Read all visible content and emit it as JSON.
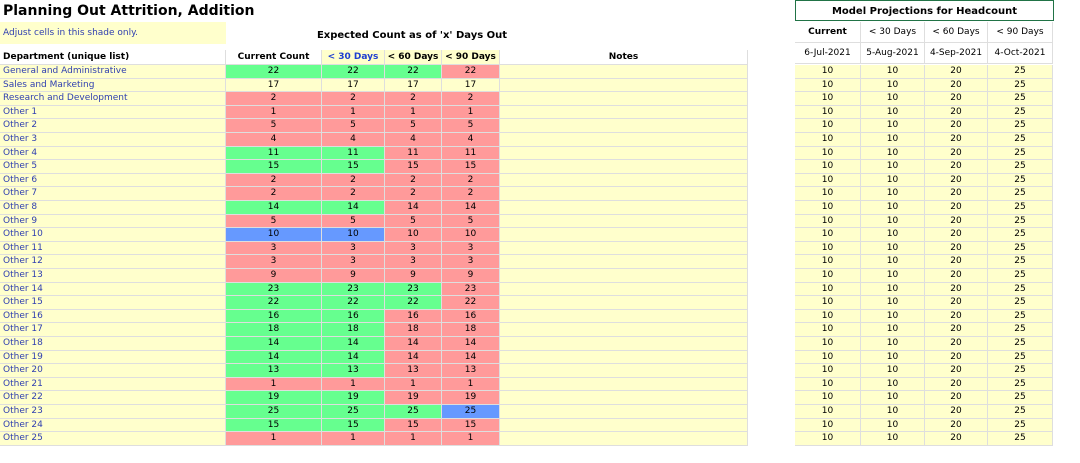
{
  "title": "Planning Out Attrition, Addition",
  "note": "Adjust cells in this shade only.",
  "expected_header": "Expected Count as of 'x' Days Out",
  "table": {
    "headers": [
      "Department (unique list)",
      "Current Count",
      "< 30 Days",
      "< 60 Days",
      "< 90 Days",
      "Notes"
    ],
    "rows": [
      [
        "General and Administrative",
        22,
        22,
        22,
        22
      ],
      [
        "Sales and Marketing",
        17,
        17,
        17,
        17
      ],
      [
        "Research and Development",
        2,
        2,
        2,
        2
      ],
      [
        "Other 1",
        1,
        1,
        1,
        1
      ],
      [
        "Other 2",
        5,
        5,
        5,
        5
      ],
      [
        "Other 3",
        4,
        4,
        4,
        4
      ],
      [
        "Other 4",
        11,
        11,
        11,
        11
      ],
      [
        "Other 5",
        15,
        15,
        15,
        15
      ],
      [
        "Other 6",
        2,
        2,
        2,
        2
      ],
      [
        "Other 7",
        2,
        2,
        2,
        2
      ],
      [
        "Other 8",
        14,
        14,
        14,
        14
      ],
      [
        "Other 9",
        5,
        5,
        5,
        5
      ],
      [
        "Other 10",
        10,
        10,
        10,
        10
      ],
      [
        "Other 11",
        3,
        3,
        3,
        3
      ],
      [
        "Other 12",
        3,
        3,
        3,
        3
      ],
      [
        "Other 13",
        9,
        9,
        9,
        9
      ],
      [
        "Other 14",
        23,
        23,
        23,
        23
      ],
      [
        "Other 15",
        22,
        22,
        22,
        22
      ],
      [
        "Other 16",
        16,
        16,
        16,
        16
      ],
      [
        "Other 17",
        18,
        18,
        18,
        18
      ],
      [
        "Other 18",
        14,
        14,
        14,
        14
      ],
      [
        "Other 19",
        14,
        14,
        14,
        14
      ],
      [
        "Other 20",
        13,
        13,
        13,
        13
      ],
      [
        "Other 21",
        1,
        1,
        1,
        1
      ],
      [
        "Other 22",
        19,
        19,
        19,
        19
      ],
      [
        "Other 23",
        25,
        25,
        25,
        25
      ],
      [
        "Other 24",
        15,
        15,
        15,
        15
      ],
      [
        "Other 25",
        1,
        1,
        1,
        1
      ]
    ]
  },
  "projections": {
    "title": "Model Projections for Headcount",
    "headers": [
      "Current",
      "< 30 Days",
      "< 60 Days",
      "< 90 Days"
    ],
    "dates": [
      "6-Jul-2021",
      "5-Aug-2021",
      "4-Sep-2021",
      "4-Oct-2021"
    ],
    "rows": [
      [
        10,
        10,
        20,
        25
      ],
      [
        10,
        10,
        20,
        25
      ],
      [
        10,
        10,
        20,
        25
      ],
      [
        10,
        10,
        20,
        25
      ],
      [
        10,
        10,
        20,
        25
      ],
      [
        10,
        10,
        20,
        25
      ],
      [
        10,
        10,
        20,
        25
      ],
      [
        10,
        10,
        20,
        25
      ],
      [
        10,
        10,
        20,
        25
      ],
      [
        10,
        10,
        20,
        25
      ],
      [
        10,
        10,
        20,
        25
      ],
      [
        10,
        10,
        20,
        25
      ],
      [
        10,
        10,
        20,
        25
      ],
      [
        10,
        10,
        20,
        25
      ],
      [
        10,
        10,
        20,
        25
      ],
      [
        10,
        10,
        20,
        25
      ],
      [
        10,
        10,
        20,
        25
      ],
      [
        10,
        10,
        20,
        25
      ],
      [
        10,
        10,
        20,
        25
      ],
      [
        10,
        10,
        20,
        25
      ],
      [
        10,
        10,
        20,
        25
      ],
      [
        10,
        10,
        20,
        25
      ],
      [
        10,
        10,
        20,
        25
      ],
      [
        10,
        10,
        20,
        25
      ],
      [
        10,
        10,
        20,
        25
      ],
      [
        10,
        10,
        20,
        25
      ],
      [
        10,
        10,
        20,
        25
      ],
      [
        10,
        10,
        20,
        25
      ]
    ]
  }
}
